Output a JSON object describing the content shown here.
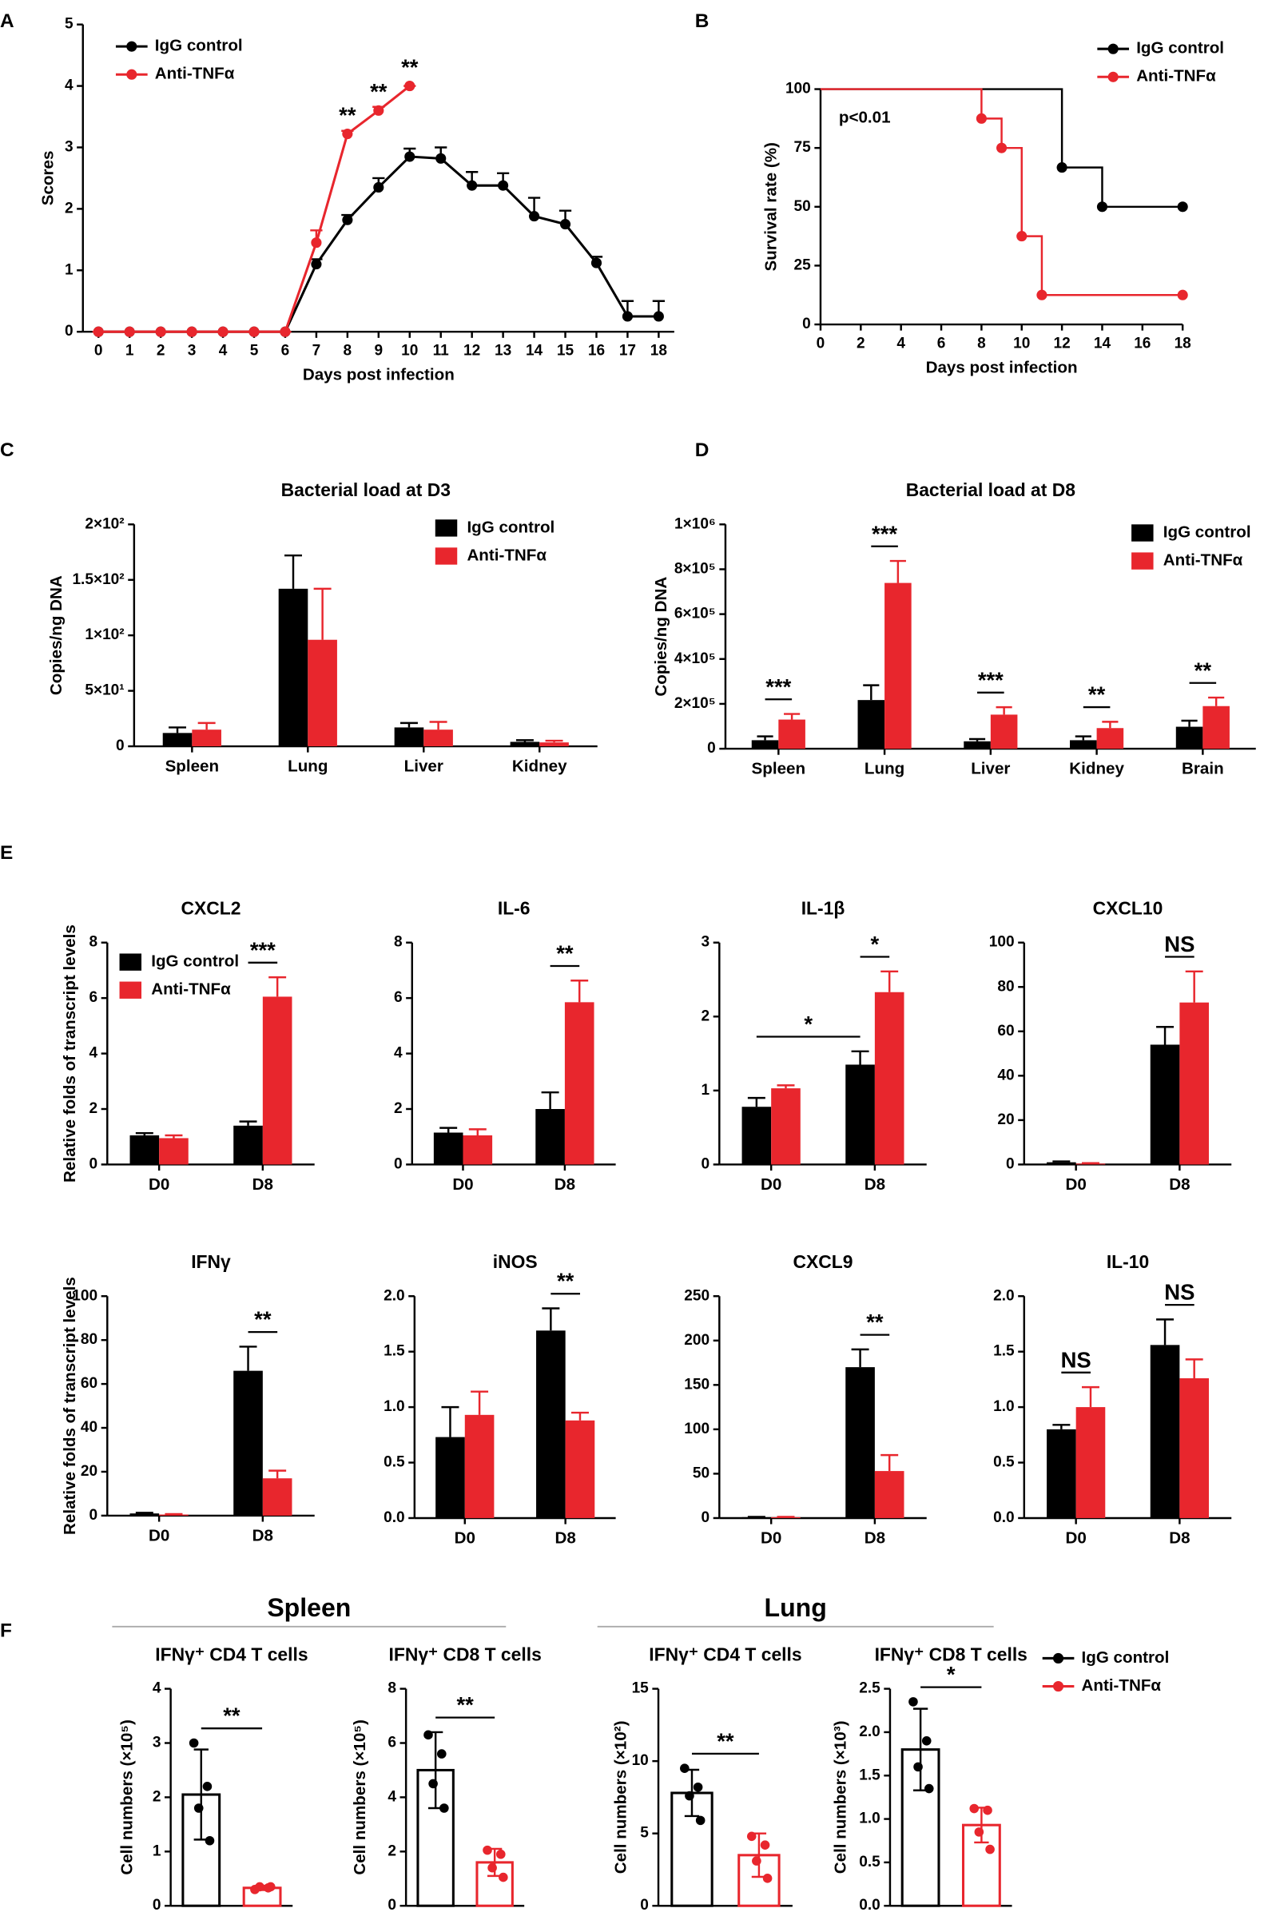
{
  "chart_data": [
    {
      "type": "line",
      "panel": "A",
      "ylabel": "Scores",
      "xlabel": "Days post infection",
      "x": [
        0,
        1,
        2,
        3,
        4,
        5,
        6,
        7,
        8,
        9,
        10,
        11,
        12,
        13,
        14,
        15,
        16,
        17,
        18
      ],
      "xlim": [
        -0.5,
        18.5
      ],
      "xticks": [
        0,
        1,
        2,
        3,
        4,
        5,
        6,
        7,
        8,
        9,
        10,
        11,
        12,
        13,
        14,
        15,
        16,
        17,
        18
      ],
      "ylim": [
        0,
        5
      ],
      "yticks": [
        0,
        1,
        2,
        3,
        4,
        5
      ],
      "legend": "upper left",
      "series": [
        {
          "name": "IgG control",
          "color": "#000000",
          "values": [
            0,
            0,
            0,
            0,
            0,
            0,
            0,
            1.1,
            1.82,
            2.35,
            2.85,
            2.82,
            2.38,
            2.38,
            1.88,
            1.75,
            1.12,
            0.25,
            0.25
          ],
          "errors": [
            0,
            0,
            0,
            0,
            0,
            0,
            0,
            0.08,
            0.08,
            0.15,
            0.13,
            0.18,
            0.22,
            0.2,
            0.3,
            0.22,
            0.1,
            0.25,
            0.25
          ]
        },
        {
          "name": "Anti-TNFα",
          "color": "#e8262d",
          "values": [
            0,
            0,
            0,
            0,
            0,
            0,
            0,
            1.45,
            3.22,
            3.6,
            4.0,
            null,
            null,
            null,
            null,
            null,
            null,
            null,
            null
          ],
          "errors": [
            0,
            0,
            0,
            0,
            0,
            0,
            0,
            0.2,
            0.05,
            0.06,
            0,
            null,
            null,
            null,
            null,
            null,
            null,
            null,
            null
          ]
        }
      ],
      "annotations": [
        {
          "text": "**",
          "x": 8
        },
        {
          "text": "**",
          "x": 9
        },
        {
          "text": "**",
          "x": 10
        }
      ]
    },
    {
      "type": "step",
      "panel": "B",
      "ylabel": "Survival rate (%)",
      "xlabel": "Days post infection",
      "xlim": [
        0,
        18
      ],
      "xticks": [
        0,
        2,
        4,
        6,
        8,
        10,
        12,
        14,
        16,
        18
      ],
      "ylim": [
        0,
        100
      ],
      "yticks": [
        0,
        25,
        50,
        75,
        100
      ],
      "legend": "upper right",
      "series": [
        {
          "name": "IgG control",
          "color": "#000000",
          "x": [
            0,
            12,
            14,
            18
          ],
          "values": [
            100,
            66.7,
            50,
            50
          ]
        },
        {
          "name": "Anti-TNFα",
          "color": "#e8262d",
          "x": [
            0,
            8,
            9,
            10,
            11,
            18
          ],
          "values": [
            100,
            87.5,
            75,
            37.5,
            12.5,
            12.5
          ]
        }
      ],
      "annotations": [
        {
          "text": "p<0.01"
        }
      ]
    },
    {
      "type": "bar",
      "panel": "C",
      "title": "Bacterial load at D3",
      "ylabel": "Copies/ng DNA",
      "categories": [
        "Spleen",
        "Lung",
        "Liver",
        "Kidney"
      ],
      "ylim": [
        0,
        200
      ],
      "yticks": [
        0,
        {
          "value": 50,
          "label": "5×10¹"
        },
        {
          "value": 100,
          "label": "1×10²"
        },
        {
          "value": 150,
          "label": "1.5×10²"
        },
        {
          "value": 200,
          "label": "2×10²"
        }
      ],
      "legend": "upper right",
      "series": [
        {
          "name": "IgG control",
          "color": "#000000",
          "values": [
            12,
            142,
            17,
            4
          ],
          "errors": [
            5,
            30,
            4,
            1.5
          ]
        },
        {
          "name": "Anti-TNFα",
          "color": "#e8262d",
          "values": [
            15,
            96,
            15,
            3.5
          ],
          "errors": [
            6,
            46,
            7,
            1.5
          ]
        }
      ]
    },
    {
      "type": "bar",
      "panel": "D",
      "title": "Bacterial load at D8",
      "ylabel": "Copies/ng DNA",
      "categories": [
        "Spleen",
        "Lung",
        "Liver",
        "Kidney",
        "Brain"
      ],
      "ylim": [
        0,
        1000000
      ],
      "yticks": [
        0,
        {
          "value": 200000,
          "label": "2×10⁵"
        },
        {
          "value": 400000,
          "label": "4×10⁵"
        },
        {
          "value": 600000,
          "label": "6×10⁵"
        },
        {
          "value": 800000,
          "label": "8×10⁵"
        },
        {
          "value": 1000000,
          "label": "1×10⁶"
        }
      ],
      "legend": "upper right",
      "series": [
        {
          "name": "IgG control",
          "color": "#000000",
          "values": [
            38000,
            217000,
            33000,
            38000,
            98000
          ],
          "errors": [
            17000,
            66000,
            10000,
            17000,
            27000
          ]
        },
        {
          "name": "Anti-TNFα",
          "color": "#e8262d",
          "values": [
            130000,
            739000,
            152000,
            92000,
            190000
          ],
          "errors": [
            25000,
            98000,
            33000,
            28000,
            38000
          ]
        }
      ],
      "annotations": [
        {
          "text": "***",
          "category": "Spleen"
        },
        {
          "text": "***",
          "category": "Lung"
        },
        {
          "text": "***",
          "category": "Liver"
        },
        {
          "text": "**",
          "category": "Kidney"
        },
        {
          "text": "**",
          "category": "Brain"
        }
      ]
    },
    {
      "type": "bar",
      "panel": "E",
      "title": "CXCL2",
      "ylabel": "Relative folds of transcript levels",
      "categories": [
        "D0",
        "D8"
      ],
      "ylim": [
        0,
        8
      ],
      "yticks": [
        0,
        2,
        4,
        6,
        8
      ],
      "legend": "upper left",
      "series": [
        {
          "name": "IgG control",
          "color": "#000000",
          "values": [
            1.05,
            1.4
          ],
          "errors": [
            0.08,
            0.15
          ]
        },
        {
          "name": "Anti-TNFα",
          "color": "#e8262d",
          "values": [
            0.95,
            6.05
          ],
          "errors": [
            0.1,
            0.7
          ]
        }
      ],
      "annotations": [
        {
          "text": "***",
          "category": "D8"
        }
      ]
    },
    {
      "type": "bar",
      "title": "IL-6",
      "categories": [
        "D0",
        "D8"
      ],
      "ylim": [
        0,
        8
      ],
      "yticks": [
        0,
        2,
        4,
        6,
        8
      ],
      "series": [
        {
          "color": "#000000",
          "values": [
            1.15,
            2.0
          ],
          "errors": [
            0.17,
            0.6
          ]
        },
        {
          "color": "#e8262d",
          "values": [
            1.05,
            5.85
          ],
          "errors": [
            0.22,
            0.78
          ]
        }
      ],
      "annotations": [
        {
          "text": "**",
          "category": "D8"
        }
      ]
    },
    {
      "type": "bar",
      "title": "IL-1β",
      "categories": [
        "D0",
        "D8"
      ],
      "ylim": [
        0,
        3
      ],
      "yticks": [
        0,
        1,
        2,
        3
      ],
      "series": [
        {
          "color": "#000000",
          "values": [
            0.78,
            1.35
          ],
          "errors": [
            0.12,
            0.18
          ]
        },
        {
          "color": "#e8262d",
          "values": [
            1.03,
            2.33
          ],
          "errors": [
            0.04,
            0.28
          ]
        }
      ],
      "annotations": [
        {
          "text": "*",
          "category": "D8"
        },
        {
          "text": "*",
          "categories": [
            "D0",
            "D8"
          ]
        }
      ]
    },
    {
      "type": "bar",
      "title": "CXCL10",
      "categories": [
        "D0",
        "D8"
      ],
      "ylim": [
        0,
        100
      ],
      "yticks": [
        0,
        20,
        40,
        60,
        80,
        100
      ],
      "series": [
        {
          "color": "#000000",
          "values": [
            1,
            54
          ],
          "errors": [
            0.4,
            8
          ]
        },
        {
          "color": "#e8262d",
          "values": [
            0.4,
            73
          ],
          "errors": [
            0.2,
            14
          ]
        }
      ],
      "annotations": [
        {
          "text": "NS",
          "category": "D8"
        }
      ]
    },
    {
      "type": "bar",
      "title": "IFNγ",
      "ylabel": "Relative folds of transcript levels",
      "categories": [
        "D0",
        "D8"
      ],
      "ylim": [
        0,
        100
      ],
      "yticks": [
        0,
        20,
        40,
        60,
        80,
        100
      ],
      "series": [
        {
          "color": "#000000",
          "values": [
            1,
            66
          ],
          "errors": [
            0.3,
            11
          ]
        },
        {
          "color": "#e8262d",
          "values": [
            0.5,
            17
          ],
          "errors": [
            0.2,
            3.5
          ]
        }
      ],
      "annotations": [
        {
          "text": "**",
          "category": "D8"
        }
      ]
    },
    {
      "type": "bar",
      "title": "iNOS",
      "categories": [
        "D0",
        "D8"
      ],
      "ylim": [
        0,
        2
      ],
      "yticks": [
        {
          "value": 0,
          "label": "0.0"
        },
        0.5,
        {
          "value": 1,
          "label": "1.0"
        },
        1.5,
        {
          "value": 2,
          "label": "2.0"
        }
      ],
      "series": [
        {
          "color": "#000000",
          "values": [
            0.73,
            1.69
          ],
          "errors": [
            0.27,
            0.2
          ]
        },
        {
          "color": "#e8262d",
          "values": [
            0.93,
            0.88
          ],
          "errors": [
            0.21,
            0.07
          ]
        }
      ],
      "annotations": [
        {
          "text": "**",
          "category": "D8"
        }
      ]
    },
    {
      "type": "bar",
      "title": "CXCL9",
      "categories": [
        "D0",
        "D8"
      ],
      "ylim": [
        0,
        250
      ],
      "yticks": [
        0,
        50,
        100,
        150,
        200,
        250
      ],
      "series": [
        {
          "color": "#000000",
          "values": [
            1,
            170
          ],
          "errors": [
            0.4,
            20
          ]
        },
        {
          "color": "#e8262d",
          "values": [
            1,
            53
          ],
          "errors": [
            0.4,
            18
          ]
        }
      ],
      "annotations": [
        {
          "text": "**",
          "category": "D8"
        }
      ]
    },
    {
      "type": "bar",
      "title": "IL-10",
      "categories": [
        "D0",
        "D8"
      ],
      "ylim": [
        0,
        2
      ],
      "yticks": [
        {
          "value": 0,
          "label": "0.0"
        },
        0.5,
        {
          "value": 1,
          "label": "1.0"
        },
        1.5,
        {
          "value": 2,
          "label": "2.0"
        }
      ],
      "series": [
        {
          "color": "#000000",
          "values": [
            0.8,
            1.56
          ],
          "errors": [
            0.04,
            0.23
          ]
        },
        {
          "color": "#e8262d",
          "values": [
            1.0,
            1.26
          ],
          "errors": [
            0.18,
            0.17
          ]
        }
      ],
      "annotations": [
        {
          "text": "NS",
          "category": "D0"
        },
        {
          "text": "NS",
          "category": "D8"
        }
      ]
    },
    {
      "type": "dotbar",
      "panel": "F",
      "group_title": "Spleen",
      "title": "IFNγ⁺ CD4 T cells",
      "ylabel": "Cell numbers (×10⁵)",
      "ylim": [
        0,
        4
      ],
      "yticks": [
        0,
        1,
        2,
        3,
        4
      ],
      "series": [
        {
          "color": "#000000",
          "values": [
            2.05
          ],
          "errors": [
            0.83
          ],
          "points": [
            3.0,
            2.2,
            1.8,
            1.2
          ]
        },
        {
          "color": "#e8262d",
          "values": [
            0.33
          ],
          "errors": [
            0.04
          ],
          "points": [
            0.3,
            0.33,
            0.35,
            0.35
          ]
        }
      ],
      "annotations": [
        {
          "text": "**"
        }
      ]
    },
    {
      "type": "dotbar",
      "title": "IFNγ⁺ CD8 T cells",
      "ylabel": "Cell numbers (×10⁵)",
      "ylim": [
        0,
        8
      ],
      "yticks": [
        0,
        2,
        4,
        6,
        8
      ],
      "series": [
        {
          "color": "#000000",
          "values": [
            5.0
          ],
          "errors": [
            1.4
          ],
          "points": [
            6.3,
            5.6,
            4.5,
            3.6
          ]
        },
        {
          "color": "#e8262d",
          "values": [
            1.6
          ],
          "errors": [
            0.5
          ],
          "points": [
            2.05,
            1.9,
            1.4,
            1.05
          ]
        }
      ],
      "annotations": [
        {
          "text": "**"
        }
      ]
    },
    {
      "type": "dotbar",
      "group_title": "Lung",
      "title": "IFNγ⁺ CD4 T cells",
      "ylabel": "Cell numbers (×10²)",
      "ylim": [
        0,
        15
      ],
      "yticks": [
        0,
        5,
        10,
        15
      ],
      "series": [
        {
          "color": "#000000",
          "values": [
            7.8
          ],
          "errors": [
            1.6
          ],
          "points": [
            9.5,
            8.2,
            7.6,
            5.9
          ]
        },
        {
          "color": "#e8262d",
          "values": [
            3.5
          ],
          "errors": [
            1.5
          ],
          "points": [
            4.8,
            4.2,
            3.1,
            1.9
          ]
        }
      ],
      "annotations": [
        {
          "text": "**"
        }
      ]
    },
    {
      "type": "dotbar",
      "title": "IFNγ⁺ CD8 T cells",
      "ylabel": "Cell numbers (×10³)",
      "ylim": [
        0,
        2.5
      ],
      "yticks": [
        {
          "value": 0,
          "label": "0.0"
        },
        0.5,
        {
          "value": 1,
          "label": "1.0"
        },
        1.5,
        {
          "value": 2,
          "label": "2.0"
        },
        2.5
      ],
      "legend": "right",
      "series": [
        {
          "name": "IgG control",
          "color": "#000000",
          "values": [
            1.8
          ],
          "errors": [
            0.47
          ],
          "points": [
            2.35,
            1.9,
            1.6,
            1.35
          ]
        },
        {
          "name": "Anti-TNFα",
          "color": "#e8262d",
          "values": [
            0.93
          ],
          "errors": [
            0.2
          ],
          "points": [
            1.12,
            1.1,
            0.85,
            0.65
          ]
        }
      ],
      "annotations": [
        {
          "text": "*"
        }
      ]
    }
  ]
}
